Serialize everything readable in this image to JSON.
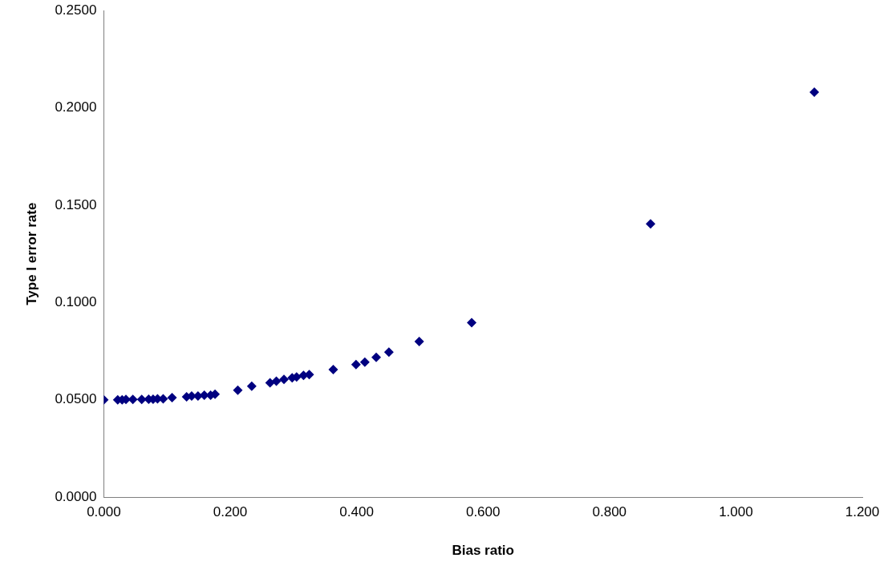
{
  "chart_data": {
    "type": "scatter",
    "xlabel": "Bias ratio",
    "ylabel": "Type I error rate",
    "x": [
      0.0,
      0.022,
      0.029,
      0.035,
      0.046,
      0.06,
      0.071,
      0.078,
      0.085,
      0.094,
      0.108,
      0.131,
      0.139,
      0.149,
      0.159,
      0.169,
      0.176,
      0.212,
      0.234,
      0.263,
      0.273,
      0.285,
      0.298,
      0.305,
      0.316,
      0.325,
      0.363,
      0.399,
      0.413,
      0.431,
      0.451,
      0.499,
      0.582,
      0.865,
      1.124
    ],
    "series": [
      {
        "color": "#000080",
        "values": [
          0.05,
          0.05,
          0.05,
          0.0502,
          0.0502,
          0.0502,
          0.0503,
          0.0503,
          0.0505,
          0.0505,
          0.0512,
          0.0516,
          0.052,
          0.052,
          0.0524,
          0.0524,
          0.0529,
          0.055,
          0.057,
          0.0588,
          0.0596,
          0.0605,
          0.0613,
          0.0618,
          0.0626,
          0.063,
          0.0656,
          0.0681,
          0.0694,
          0.0719,
          0.0745,
          0.08,
          0.0897,
          0.1404,
          0.2081
        ]
      }
    ],
    "xlim": [
      0,
      1.2
    ],
    "xticks": [
      {
        "value": 0,
        "label": "0.000"
      },
      {
        "value": 0.2,
        "label": "0.200"
      },
      {
        "value": 0.4,
        "label": "0.400"
      },
      {
        "value": 0.6,
        "label": "0.600"
      },
      {
        "value": 0.8,
        "label": "0.800"
      },
      {
        "value": 1,
        "label": "1.000"
      },
      {
        "value": 1.2,
        "label": "1.200"
      }
    ],
    "ylim": [
      0,
      0.25
    ],
    "yticks": [
      {
        "value": 0,
        "label": "0.0000"
      },
      {
        "value": 0.05,
        "label": "0.0500"
      },
      {
        "value": 0.1,
        "label": "0.1000"
      },
      {
        "value": 0.15,
        "label": "0.1500"
      },
      {
        "value": 0.2,
        "label": "0.2000"
      },
      {
        "value": 0.25,
        "label": "0.2500"
      }
    ],
    "grid": false,
    "legend": false,
    "marker": "diamond"
  }
}
